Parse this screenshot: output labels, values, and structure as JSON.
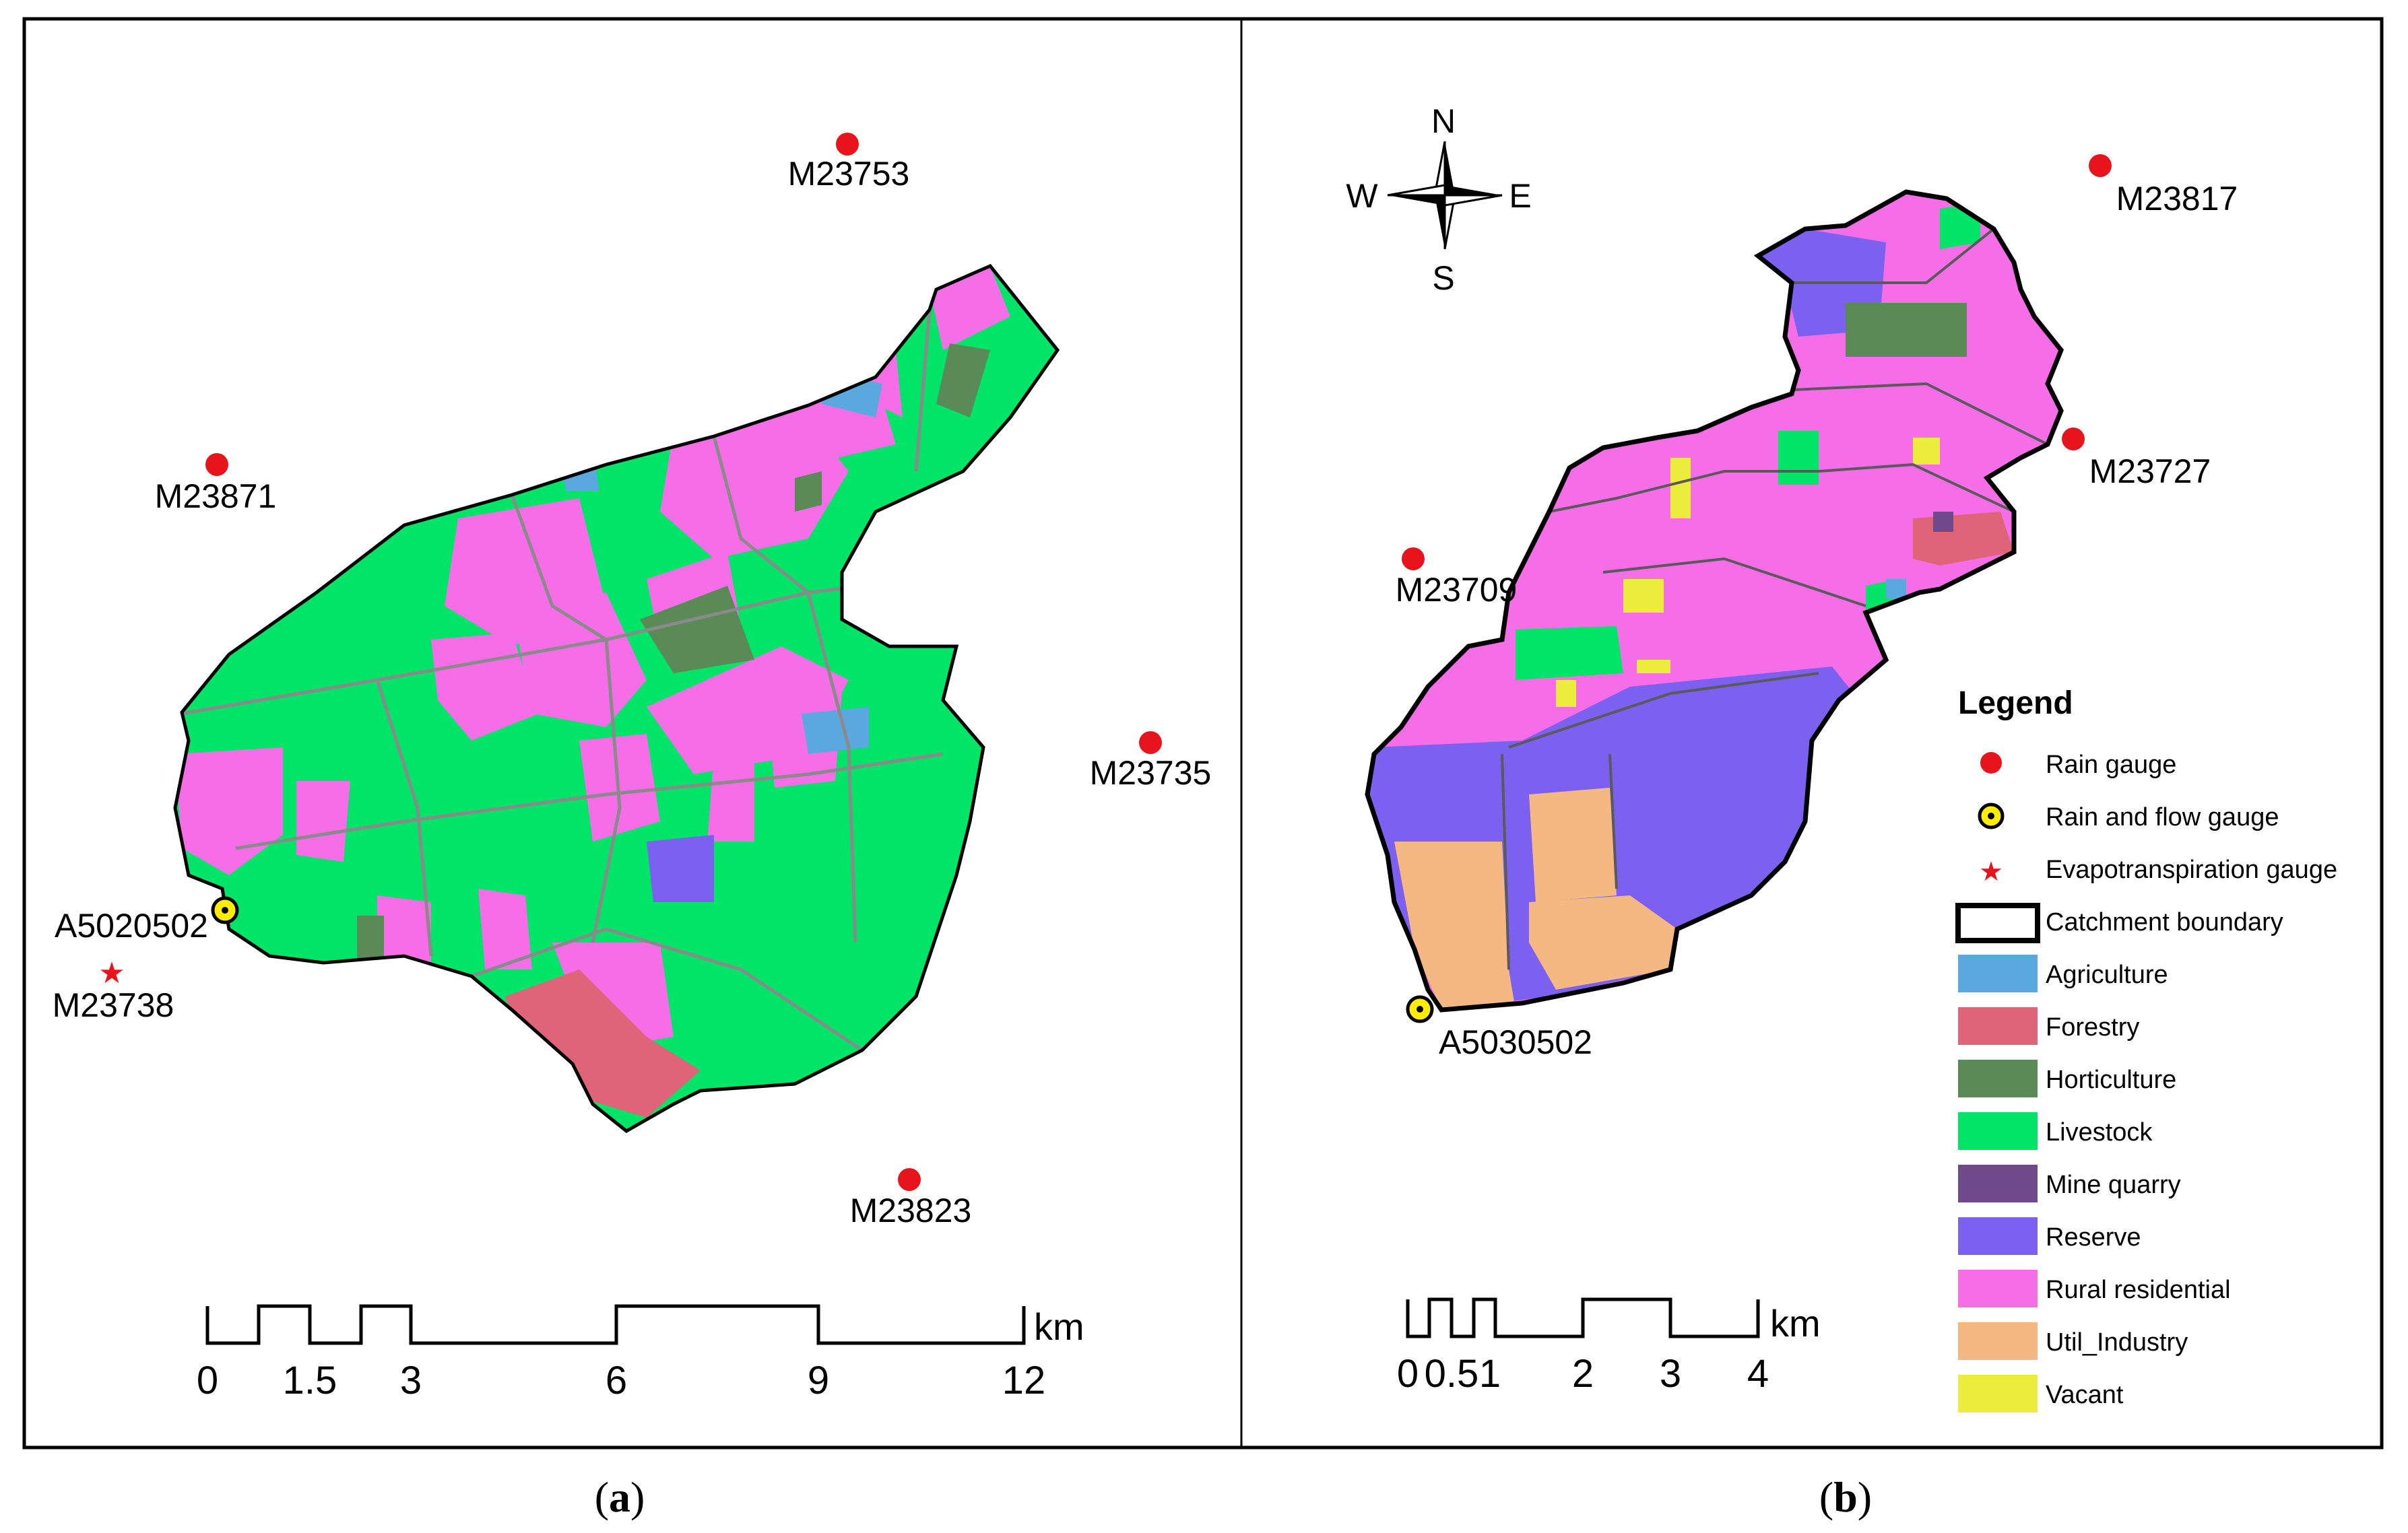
{
  "panel_a": {
    "caption": "a",
    "gauges": [
      {
        "type": "rain",
        "label": "M23753"
      },
      {
        "type": "rain",
        "label": "M23871"
      },
      {
        "type": "rain",
        "label": "M23735"
      },
      {
        "type": "rain",
        "label": "M23823"
      },
      {
        "type": "flow",
        "label": "A5020502"
      },
      {
        "type": "evap",
        "label": "M23738"
      }
    ],
    "scalebar": {
      "ticks": [
        "0",
        "1.5",
        "3",
        "6",
        "9",
        "12"
      ],
      "unit": "km"
    }
  },
  "panel_b": {
    "caption": "b",
    "gauges": [
      {
        "type": "rain",
        "label": "M23817"
      },
      {
        "type": "rain",
        "label": "M23727"
      },
      {
        "type": "rain",
        "label": "M23709"
      },
      {
        "type": "flow",
        "label": "A5030502"
      }
    ],
    "north_arrow": {
      "n": "N",
      "s": "S",
      "e": "E",
      "w": "W"
    },
    "scalebar": {
      "ticks": [
        "0",
        "0.5",
        "1",
        "2",
        "3",
        "4"
      ],
      "unit": "km"
    }
  },
  "legend": {
    "title": "Legend",
    "symbols": [
      {
        "name": "rain-gauge",
        "label": "Rain gauge"
      },
      {
        "name": "flow-gauge",
        "label": "Rain and flow gauge"
      },
      {
        "name": "evap-gauge",
        "label": "Evapotranspiration gauge"
      },
      {
        "name": "catchment-boundary",
        "label": "Catchment boundary"
      }
    ],
    "classes": [
      {
        "label": "Agriculture",
        "color": "#5aa8e0"
      },
      {
        "label": "Forestry",
        "color": "#e06478"
      },
      {
        "label": "Horticulture",
        "color": "#5a8a55"
      },
      {
        "label": "Livestock",
        "color": "#00e468"
      },
      {
        "label": "Mine quarry",
        "color": "#6e4a8c"
      },
      {
        "label": "Reserve",
        "color": "#7c60f0"
      },
      {
        "label": "Rural residential",
        "color": "#f56ee8"
      },
      {
        "label": "Util_Industry",
        "color": "#f5b882"
      },
      {
        "label": "Vacant",
        "color": "#ecec3c"
      }
    ]
  },
  "colors": {
    "rain_gauge": "#e8141c",
    "road": "#8a8a8a",
    "frame": "#000000"
  }
}
